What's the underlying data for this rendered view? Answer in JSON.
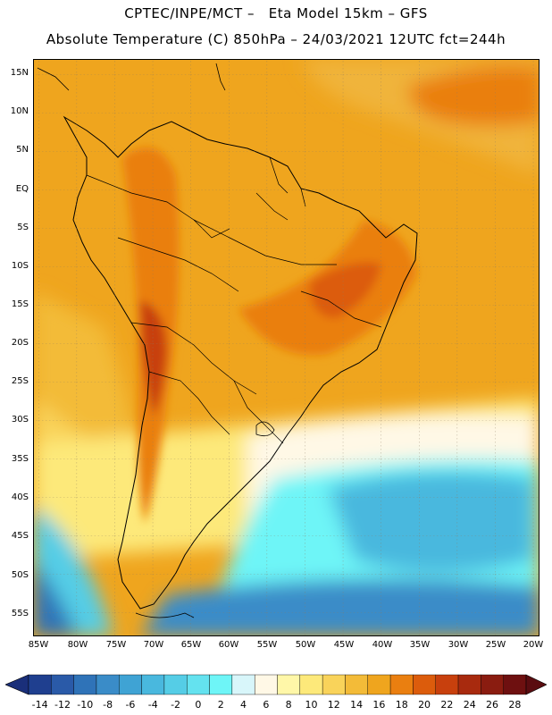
{
  "header": {
    "line1": "CPTEC/INPE/MCT –   Eta Model 15km – GFS",
    "line2": "Absolute Temperature (C) 850hPa – 24/03/2021 12UTC fct=244h"
  },
  "map": {
    "lat_labels": [
      "15N",
      "10N",
      "5N",
      "EQ",
      "5S",
      "10S",
      "15S",
      "20S",
      "25S",
      "30S",
      "35S",
      "40S",
      "45S",
      "50S",
      "55S"
    ],
    "lon_labels": [
      "85W",
      "80W",
      "75W",
      "70W",
      "65W",
      "60W",
      "55W",
      "50W",
      "45W",
      "40W",
      "35W",
      "30W",
      "25W",
      "20W"
    ],
    "lat_range": [
      -58,
      17
    ],
    "lon_range": [
      -86,
      -20
    ]
  },
  "colorbar": {
    "labels": [
      "-14",
      "-12",
      "-10",
      "-8",
      "-6",
      "-4",
      "-2",
      "0",
      "2",
      "4",
      "6",
      "8",
      "10",
      "12",
      "14",
      "16",
      "18",
      "20",
      "22",
      "24",
      "26",
      "28"
    ],
    "colors": [
      "#1f3f8f",
      "#2a5aa8",
      "#2f73b8",
      "#3a8cc8",
      "#3fa3d4",
      "#49b8de",
      "#55cde6",
      "#64e2ef",
      "#6ef5f7",
      "#d8f6fa",
      "#fff8e6",
      "#fff7a8",
      "#fde97a",
      "#f9d35a",
      "#f3bb38",
      "#efa51e",
      "#ea7f10",
      "#dc5c0c",
      "#c8400d",
      "#a82a0e",
      "#8a1c10",
      "#6e1010"
    ]
  }
}
